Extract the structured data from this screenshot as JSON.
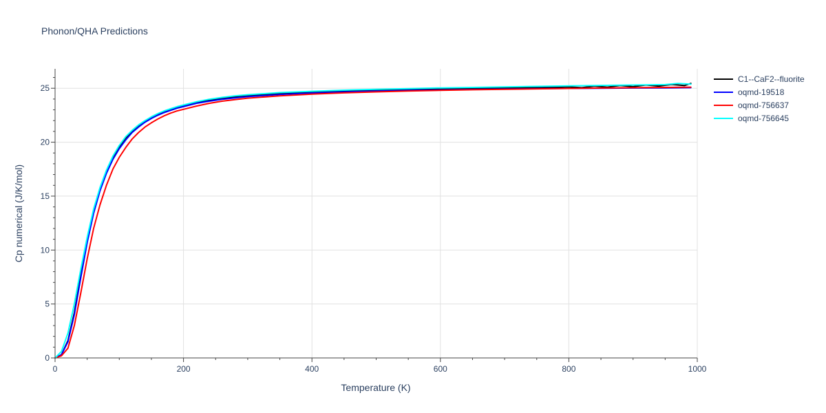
{
  "chart_data": {
    "type": "line",
    "title": "Phonon/QHA Predictions",
    "xlabel": "Temperature (K)",
    "ylabel": "Cp numerical (J/K/mol)",
    "xlim": [
      0,
      1000
    ],
    "ylim": [
      0,
      26.8
    ],
    "xticks": [
      0,
      200,
      400,
      600,
      800,
      1000
    ],
    "yticks": [
      0,
      5,
      10,
      15,
      20,
      25
    ],
    "grid": true,
    "legend_position": "top-right",
    "series": [
      {
        "name": "C1--CaF2--fluorite",
        "color": "#000000",
        "x": [
          0,
          10,
          20,
          30,
          40,
          50,
          60,
          70,
          80,
          90,
          100,
          110,
          120,
          130,
          140,
          150,
          160,
          170,
          180,
          190,
          200,
          220,
          240,
          260,
          280,
          300,
          350,
          400,
          450,
          500,
          550,
          600,
          650,
          700,
          750,
          800,
          820,
          840,
          860,
          880,
          900,
          920,
          940,
          960,
          980,
          990
        ],
        "y": [
          0,
          0.3,
          1.6,
          4.2,
          7.6,
          10.9,
          13.6,
          15.7,
          17.3,
          18.6,
          19.6,
          20.4,
          21.0,
          21.5,
          21.9,
          22.3,
          22.6,
          22.85,
          23.05,
          23.25,
          23.4,
          23.7,
          23.9,
          24.05,
          24.2,
          24.3,
          24.5,
          24.62,
          24.72,
          24.8,
          24.87,
          24.93,
          24.98,
          25.02,
          25.06,
          25.12,
          25.05,
          25.2,
          25.1,
          25.25,
          25.15,
          25.3,
          25.2,
          25.35,
          25.25,
          25.45
        ]
      },
      {
        "name": "oqmd-19518",
        "color": "#0000ff",
        "x": [
          0,
          10,
          20,
          30,
          40,
          50,
          60,
          70,
          80,
          90,
          100,
          110,
          120,
          130,
          140,
          150,
          160,
          170,
          180,
          190,
          200,
          220,
          240,
          260,
          280,
          300,
          350,
          400,
          450,
          500,
          550,
          600,
          650,
          700,
          750,
          800,
          850,
          900,
          950,
          990
        ],
        "y": [
          0,
          0.3,
          1.5,
          4.0,
          7.4,
          10.7,
          13.4,
          15.5,
          17.1,
          18.4,
          19.4,
          20.2,
          20.9,
          21.4,
          21.85,
          22.2,
          22.5,
          22.75,
          22.95,
          23.15,
          23.3,
          23.6,
          23.8,
          23.98,
          24.1,
          24.22,
          24.42,
          24.56,
          24.66,
          24.74,
          24.8,
          24.85,
          24.89,
          24.93,
          24.96,
          24.98,
          25.0,
          25.02,
          25.03,
          25.05
        ]
      },
      {
        "name": "oqmd-756637",
        "color": "#ff0000",
        "x": [
          0,
          10,
          20,
          30,
          40,
          50,
          60,
          70,
          80,
          90,
          100,
          110,
          120,
          130,
          140,
          150,
          160,
          170,
          180,
          190,
          200,
          220,
          240,
          260,
          280,
          300,
          350,
          400,
          450,
          500,
          550,
          600,
          650,
          700,
          750,
          800,
          850,
          900,
          950,
          990
        ],
        "y": [
          0,
          0.2,
          0.9,
          3.0,
          6.0,
          9.2,
          12.0,
          14.2,
          16.0,
          17.5,
          18.6,
          19.5,
          20.3,
          20.9,
          21.4,
          21.8,
          22.15,
          22.45,
          22.7,
          22.9,
          23.05,
          23.35,
          23.6,
          23.8,
          23.95,
          24.08,
          24.3,
          24.46,
          24.57,
          24.66,
          24.74,
          24.8,
          24.86,
          24.9,
          24.94,
          24.98,
          25.02,
          25.05,
          25.08,
          25.1
        ]
      },
      {
        "name": "oqmd-756645",
        "color": "#00ffff",
        "x": [
          0,
          10,
          20,
          30,
          40,
          50,
          60,
          70,
          80,
          90,
          100,
          110,
          120,
          130,
          140,
          150,
          160,
          170,
          180,
          190,
          200,
          220,
          240,
          260,
          280,
          300,
          350,
          400,
          450,
          500,
          550,
          600,
          650,
          700,
          750,
          800,
          850,
          900,
          950,
          970,
          990
        ],
        "y": [
          0,
          0.6,
          2.3,
          5.0,
          8.2,
          11.2,
          13.8,
          15.8,
          17.4,
          18.7,
          19.7,
          20.5,
          21.1,
          21.6,
          22.0,
          22.35,
          22.65,
          22.9,
          23.1,
          23.3,
          23.45,
          23.75,
          23.98,
          24.15,
          24.3,
          24.4,
          24.6,
          24.72,
          24.82,
          24.9,
          24.97,
          25.03,
          25.08,
          25.13,
          25.17,
          25.22,
          25.26,
          25.3,
          25.34,
          25.45,
          25.38
        ]
      }
    ]
  }
}
